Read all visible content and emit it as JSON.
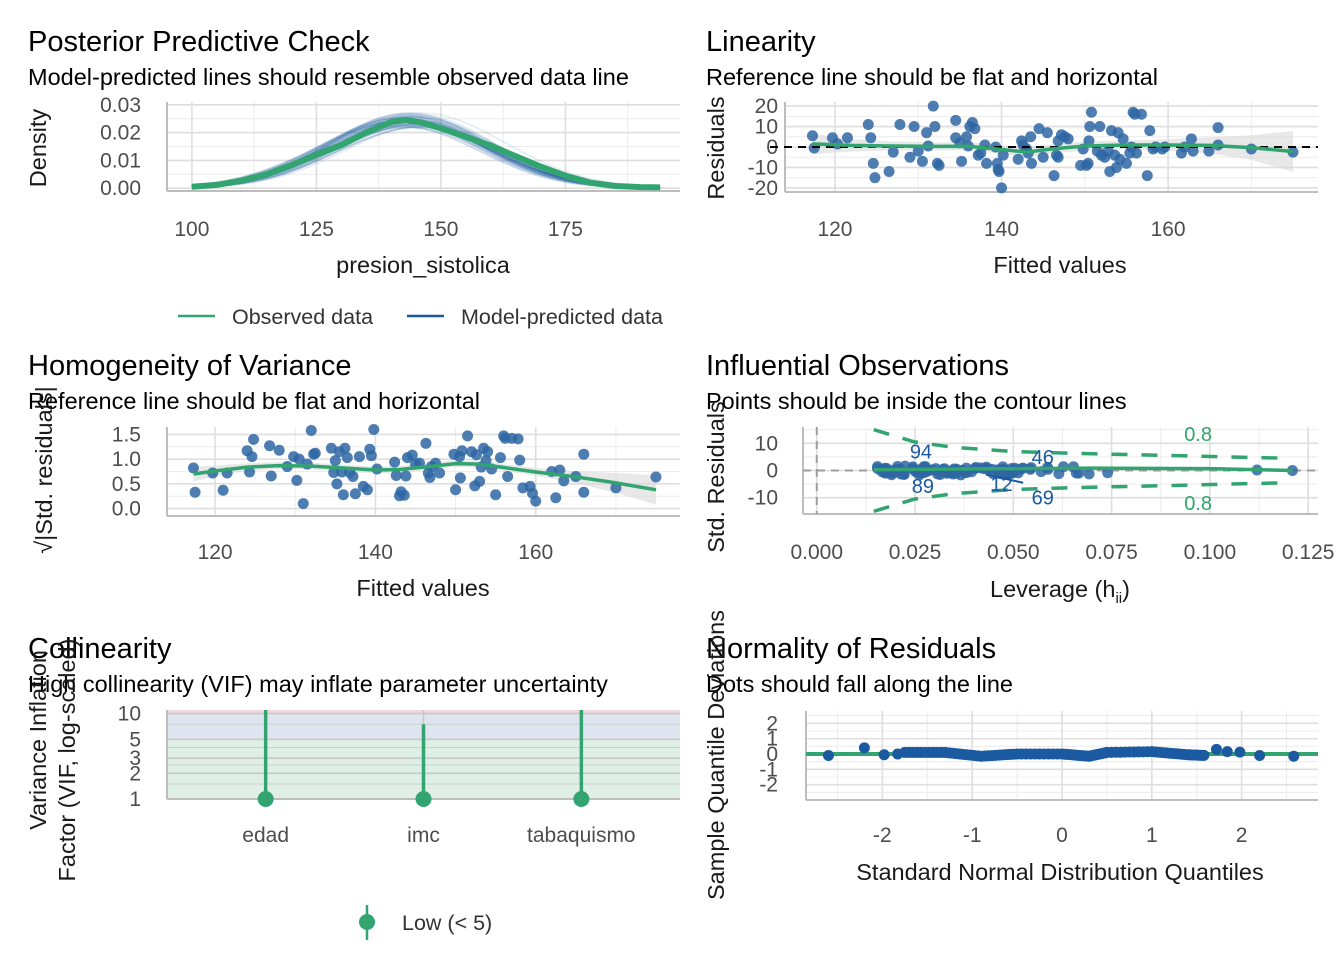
{
  "colors": {
    "observed": "#31a46f",
    "predicted": "#1b5aa0",
    "points": "#2e66a3",
    "grid_major": "#dedede",
    "grid_minor": "#ececec",
    "axis": "#bdbdbd",
    "ribbon": "#d9d9d9",
    "band_low": "#e0efe6",
    "band_moderate": "#dfe5f0",
    "band_high": "#f3d9de"
  },
  "chart_data": [
    {
      "id": "ppc",
      "type": "line",
      "title": "Posterior Predictive Check",
      "subtitle": "Model-predicted lines should resemble observed data line",
      "xlabel": "presion_sistolica",
      "ylabel": "Density",
      "xlim": [
        95,
        198
      ],
      "ylim": [
        -0.001,
        0.031
      ],
      "xticks": [
        100,
        125,
        150,
        175
      ],
      "yticks": [
        0.0,
        0.01,
        0.02,
        0.03
      ],
      "ytick_labels": [
        "0.00",
        "0.01",
        "0.02",
        "0.03"
      ],
      "legend": [
        "Observed data",
        "Model-predicted data"
      ],
      "legend_position": "bottom",
      "observed": {
        "x": [
          100,
          105,
          110,
          115,
          120,
          125,
          130,
          135,
          140,
          143,
          146,
          150,
          155,
          160,
          165,
          170,
          175,
          180,
          185,
          190,
          194
        ],
        "y": [
          0.0005,
          0.0012,
          0.0027,
          0.005,
          0.0083,
          0.012,
          0.0155,
          0.02,
          0.0238,
          0.0245,
          0.0237,
          0.0215,
          0.0185,
          0.0153,
          0.0115,
          0.0078,
          0.0045,
          0.002,
          0.0008,
          0.0004,
          0.0003
        ]
      },
      "predicted_draws": 50
    },
    {
      "id": "linearity",
      "type": "scatter",
      "title": "Linearity",
      "subtitle": "Reference line should be flat and horizontal",
      "xlabel": "Fitted values",
      "ylabel": "Residuals",
      "xlim": [
        114,
        178
      ],
      "ylim": [
        -22,
        22
      ],
      "xticks": [
        120,
        140,
        160
      ],
      "yticks": [
        -20,
        -10,
        0,
        10,
        20
      ],
      "points": [
        [
          117.3,
          5.5
        ],
        [
          117.5,
          -0.5
        ],
        [
          119.7,
          4.5
        ],
        [
          120.3,
          1.5
        ],
        [
          121.5,
          4.5
        ],
        [
          124.0,
          11
        ],
        [
          124.3,
          4.5
        ],
        [
          124.6,
          -8
        ],
        [
          124.8,
          -15
        ],
        [
          126.5,
          -12
        ],
        [
          127.0,
          -2.5
        ],
        [
          127.8,
          11
        ],
        [
          129.0,
          -5
        ],
        [
          129.5,
          10
        ],
        [
          130.0,
          -2
        ],
        [
          130.5,
          -7
        ],
        [
          131.0,
          7
        ],
        [
          131.2,
          0.5
        ],
        [
          131.8,
          20
        ],
        [
          132.0,
          10
        ],
        [
          132.3,
          -8
        ],
        [
          132.5,
          -9
        ],
        [
          134.5,
          13
        ],
        [
          134.5,
          4.5
        ],
        [
          135.0,
          2
        ],
        [
          135.2,
          -7
        ],
        [
          135.8,
          5
        ],
        [
          136.0,
          0.5
        ],
        [
          136.2,
          10
        ],
        [
          136.5,
          12
        ],
        [
          136.8,
          9
        ],
        [
          137.2,
          -4
        ],
        [
          137.5,
          -3
        ],
        [
          138.0,
          1
        ],
        [
          138.2,
          -8
        ],
        [
          139.3,
          0
        ],
        [
          139.5,
          -8
        ],
        [
          139.6,
          -11
        ],
        [
          139.7,
          -12
        ],
        [
          140.0,
          -20
        ],
        [
          140.2,
          -4
        ],
        [
          142.0,
          -6
        ],
        [
          142.4,
          3
        ],
        [
          142.6,
          1
        ],
        [
          143.0,
          -1
        ],
        [
          143.2,
          -3
        ],
        [
          143.5,
          5
        ],
        [
          143.6,
          -8
        ],
        [
          144.5,
          9
        ],
        [
          145.0,
          -5
        ],
        [
          145.5,
          7
        ],
        [
          146.3,
          -14
        ],
        [
          146.6,
          -4
        ],
        [
          146.8,
          -5
        ],
        [
          146.8,
          3
        ],
        [
          147.2,
          6
        ],
        [
          147.6,
          5
        ],
        [
          148.0,
          4
        ],
        [
          149.5,
          -9
        ],
        [
          149.8,
          -1
        ],
        [
          150.2,
          -9
        ],
        [
          150.4,
          -8
        ],
        [
          150.5,
          3
        ],
        [
          150.6,
          10
        ],
        [
          150.8,
          17
        ],
        [
          151.5,
          -2
        ],
        [
          151.8,
          10
        ],
        [
          152.0,
          -4
        ],
        [
          152.4,
          -5
        ],
        [
          152.8,
          -2
        ],
        [
          153.0,
          -12
        ],
        [
          153.2,
          8
        ],
        [
          153.6,
          -4
        ],
        [
          153.8,
          -10
        ],
        [
          154.0,
          7
        ],
        [
          154.2,
          -6
        ],
        [
          154.6,
          4
        ],
        [
          155.0,
          -8
        ],
        [
          155.4,
          -3
        ],
        [
          155.6,
          0
        ],
        [
          155.8,
          17
        ],
        [
          156.0,
          16
        ],
        [
          156.2,
          -3
        ],
        [
          156.8,
          16
        ],
        [
          157.5,
          -14
        ],
        [
          157.8,
          8
        ],
        [
          158.2,
          -1
        ],
        [
          158.5,
          0
        ],
        [
          159.3,
          -1
        ],
        [
          159.6,
          0
        ],
        [
          161.6,
          -3
        ],
        [
          162.0,
          0
        ],
        [
          162.8,
          4
        ],
        [
          163.0,
          -2
        ],
        [
          164.9,
          -2
        ],
        [
          166.0,
          9.5
        ],
        [
          166.0,
          1
        ],
        [
          170.0,
          -1
        ],
        [
          175.0,
          -2.5
        ]
      ],
      "smooth": {
        "x": [
          117.3,
          122,
          127,
          132,
          136,
          140,
          143,
          146,
          150,
          155,
          160,
          165,
          170,
          175
        ],
        "y": [
          1.5,
          0.8,
          0.5,
          0.3,
          0.4,
          -1.2,
          -2.5,
          -1.0,
          0.5,
          1.0,
          1.0,
          0.8,
          -0.3,
          -2.2
        ]
      },
      "ribbon_halfwidth": [
        5,
        3,
        2.2,
        2,
        2,
        2.2,
        2.5,
        2.3,
        2.2,
        2.2,
        2.8,
        4,
        6,
        10
      ]
    },
    {
      "id": "homogeneity",
      "type": "scatter",
      "title": "Homogeneity of Variance",
      "subtitle": "Reference line should be flat and horizontal",
      "xlabel": "Fitted values",
      "ylabel": "√|Std. residuals|",
      "xlim": [
        114,
        178
      ],
      "ylim": [
        -0.15,
        1.65
      ],
      "xticks": [
        120,
        140,
        160
      ],
      "yticks": [
        0.0,
        0.5,
        1.0,
        1.5
      ],
      "ytick_labels": [
        "0.0",
        "0.5",
        "1.0",
        "1.5"
      ],
      "points": [
        [
          117.3,
          0.82
        ],
        [
          117.5,
          0.33
        ],
        [
          119.7,
          0.72
        ],
        [
          121.0,
          0.37
        ],
        [
          121.5,
          0.72
        ],
        [
          124.0,
          1.17
        ],
        [
          124.3,
          0.74
        ],
        [
          124.6,
          1.05
        ],
        [
          124.8,
          1.4
        ],
        [
          126.8,
          1.27
        ],
        [
          127.0,
          0.66
        ],
        [
          128.0,
          1.18
        ],
        [
          129.0,
          0.85
        ],
        [
          129.8,
          1.05
        ],
        [
          130.2,
          0.57
        ],
        [
          130.5,
          1.0
        ],
        [
          131.0,
          0.1
        ],
        [
          131.5,
          0.9
        ],
        [
          132.0,
          1.58
        ],
        [
          132.3,
          1.1
        ],
        [
          132.5,
          1.12
        ],
        [
          134.5,
          1.22
        ],
        [
          134.8,
          0.73
        ],
        [
          135.0,
          0.97
        ],
        [
          135.2,
          0.5
        ],
        [
          135.5,
          1.15
        ],
        [
          135.8,
          0.74
        ],
        [
          136.0,
          0.28
        ],
        [
          136.2,
          1.22
        ],
        [
          136.5,
          1.03
        ],
        [
          136.8,
          0.73
        ],
        [
          137.2,
          0.65
        ],
        [
          137.5,
          0.3
        ],
        [
          138.0,
          1.05
        ],
        [
          138.5,
          0.45
        ],
        [
          139.0,
          0.38
        ],
        [
          139.3,
          1.2
        ],
        [
          139.5,
          1.07
        ],
        [
          139.8,
          1.6
        ],
        [
          140.2,
          0.8
        ],
        [
          142.4,
          0.94
        ],
        [
          142.6,
          0.67
        ],
        [
          143.0,
          0.26
        ],
        [
          143.2,
          0.34
        ],
        [
          143.6,
          0.27
        ],
        [
          143.8,
          0.66
        ],
        [
          144.0,
          1.03
        ],
        [
          144.6,
          1.08
        ],
        [
          145.0,
          0.9
        ],
        [
          145.5,
          0.92
        ],
        [
          146.3,
          1.32
        ],
        [
          146.6,
          0.72
        ],
        [
          146.8,
          0.63
        ],
        [
          147.0,
          0.85
        ],
        [
          147.5,
          0.92
        ],
        [
          148.0,
          0.72
        ],
        [
          149.8,
          1.1
        ],
        [
          150.0,
          0.38
        ],
        [
          150.5,
          1.05
        ],
        [
          150.6,
          0.62
        ],
        [
          150.8,
          1.17
        ],
        [
          151.5,
          1.47
        ],
        [
          152.0,
          1.15
        ],
        [
          152.4,
          0.46
        ],
        [
          152.6,
          1.09
        ],
        [
          153.0,
          0.55
        ],
        [
          153.2,
          0.84
        ],
        [
          153.5,
          1.22
        ],
        [
          153.8,
          0.97
        ],
        [
          154.0,
          1.15
        ],
        [
          154.5,
          0.8
        ],
        [
          155.0,
          0.28
        ],
        [
          155.6,
          1.03
        ],
        [
          156.0,
          1.47
        ],
        [
          156.2,
          1.42
        ],
        [
          156.5,
          0.65
        ],
        [
          157.0,
          1.42
        ],
        [
          157.8,
          1.41
        ],
        [
          158.0,
          0.98
        ],
        [
          158.4,
          0.42
        ],
        [
          159.3,
          0.45
        ],
        [
          159.6,
          0.31
        ],
        [
          160.0,
          0.15
        ],
        [
          162.0,
          0.75
        ],
        [
          162.5,
          0.22
        ],
        [
          163.0,
          0.78
        ],
        [
          163.5,
          0.56
        ],
        [
          165.0,
          0.65
        ],
        [
          166.0,
          1.1
        ],
        [
          166.0,
          0.33
        ],
        [
          170.0,
          0.42
        ],
        [
          175.0,
          0.64
        ]
      ],
      "smooth": {
        "x": [
          117.3,
          120,
          124,
          128,
          132,
          136,
          140,
          143,
          146,
          150,
          153,
          156,
          160,
          165,
          170,
          175
        ],
        "y": [
          0.7,
          0.76,
          0.84,
          0.87,
          0.86,
          0.82,
          0.78,
          0.79,
          0.84,
          0.91,
          0.9,
          0.83,
          0.74,
          0.64,
          0.52,
          0.38
        ]
      },
      "ribbon_halfwidth": [
        0.15,
        0.11,
        0.08,
        0.07,
        0.07,
        0.07,
        0.07,
        0.07,
        0.07,
        0.07,
        0.07,
        0.07,
        0.08,
        0.12,
        0.2,
        0.3
      ]
    },
    {
      "id": "influential",
      "type": "scatter",
      "title": "Influential Observations",
      "subtitle": "Points should be inside the contour lines",
      "xlabel": "Leverage (h",
      "xlabel_sub": "ii",
      "xlabel_end": ")",
      "ylabel": "Std. Residuals",
      "xlim": [
        -0.0035,
        0.1275
      ],
      "ylim": [
        -16,
        16
      ],
      "xticks": [
        0.0,
        0.025,
        0.05,
        0.075,
        0.1,
        0.125
      ],
      "xtick_labels": [
        "0.000",
        "0.025",
        "0.050",
        "0.075",
        "0.100",
        "0.125"
      ],
      "yticks": [
        -10,
        0,
        10
      ],
      "contour_label": "0.8",
      "contour_upper": {
        "x": [
          0.0145,
          0.025,
          0.035,
          0.05,
          0.06,
          0.075,
          0.09,
          0.105,
          0.12
        ],
        "y": [
          15,
          10.5,
          8.5,
          7,
          6.5,
          6,
          5.5,
          5.0,
          4.5
        ]
      },
      "labels": [
        {
          "text": "94",
          "x": 0.0265,
          "y": 7
        },
        {
          "text": "46",
          "x": 0.0575,
          "y": 5
        },
        {
          "text": "89",
          "x": 0.027,
          "y": -5.7
        },
        {
          "text": "12",
          "x": 0.047,
          "y": -5
        },
        {
          "text": "69",
          "x": 0.0575,
          "y": -10
        }
      ],
      "leverage_range": [
        0.0145,
        0.074
      ],
      "outliers": [
        [
          0.112,
          0.2
        ],
        [
          0.121,
          0.0
        ],
        [
          0.074,
          -0.8
        ]
      ],
      "segment": [
        [
          0.043,
          -1.5
        ],
        [
          0.0525,
          -4.5
        ]
      ],
      "smooth": {
        "x": [
          0.0145,
          0.04,
          0.07,
          0.1,
          0.121
        ],
        "y": [
          0.3,
          0.6,
          0.9,
          0.7,
          0.0
        ]
      }
    },
    {
      "id": "collinearity",
      "type": "bar",
      "title": "Collinearity",
      "subtitle": "High collinearity (VIF) may inflate parameter uncertainty",
      "ylabel_line1": "Variance Inflation",
      "ylabel_line2": "Factor (VIF, log-scaled)",
      "categories": [
        "edad",
        "imc",
        "tabaquismo"
      ],
      "values": [
        1.0,
        1.0,
        1.0
      ],
      "ci_upper": [
        11.0,
        7.5,
        11.0
      ],
      "yscale": "log",
      "ylim": [
        1,
        11
      ],
      "yticks": [
        1,
        2,
        3,
        5,
        10
      ],
      "bands": [
        {
          "from": 1,
          "to": 5,
          "name": "low"
        },
        {
          "from": 5,
          "to": 10,
          "name": "moderate"
        },
        {
          "from": 10,
          "to": 11,
          "name": "high"
        }
      ],
      "legend": [
        "Low (< 5)"
      ],
      "legend_position": "bottom"
    },
    {
      "id": "normality",
      "type": "scatter",
      "title": "Normality of Residuals",
      "subtitle": "Dots should fall along the line",
      "xlabel": "Standard Normal Distribution Quantiles",
      "ylabel": "Sample Quantile Deviations",
      "xlim": [
        -2.85,
        2.85
      ],
      "ylim": [
        -3,
        2.8
      ],
      "xticks": [
        -2,
        -1,
        0,
        1,
        2
      ],
      "yticks": [
        -2,
        -1,
        0,
        1,
        2
      ],
      "points_extreme": [
        [
          -2.6,
          -0.1
        ],
        [
          -2.2,
          0.4
        ],
        [
          -1.98,
          -0.05
        ],
        [
          -1.83,
          0.0
        ],
        [
          1.72,
          0.3
        ],
        [
          1.84,
          0.15
        ],
        [
          1.98,
          0.12
        ],
        [
          2.2,
          -0.1
        ],
        [
          2.58,
          -0.15
        ]
      ],
      "band": {
        "x": [
          -1.75,
          -1.3,
          -0.9,
          -0.5,
          0,
          0.3,
          0.5,
          1.0,
          1.4,
          1.6
        ],
        "y": [
          0.1,
          0.1,
          -0.15,
          0.0,
          0.0,
          -0.15,
          0.1,
          0.15,
          -0.05,
          -0.1
        ]
      }
    }
  ]
}
